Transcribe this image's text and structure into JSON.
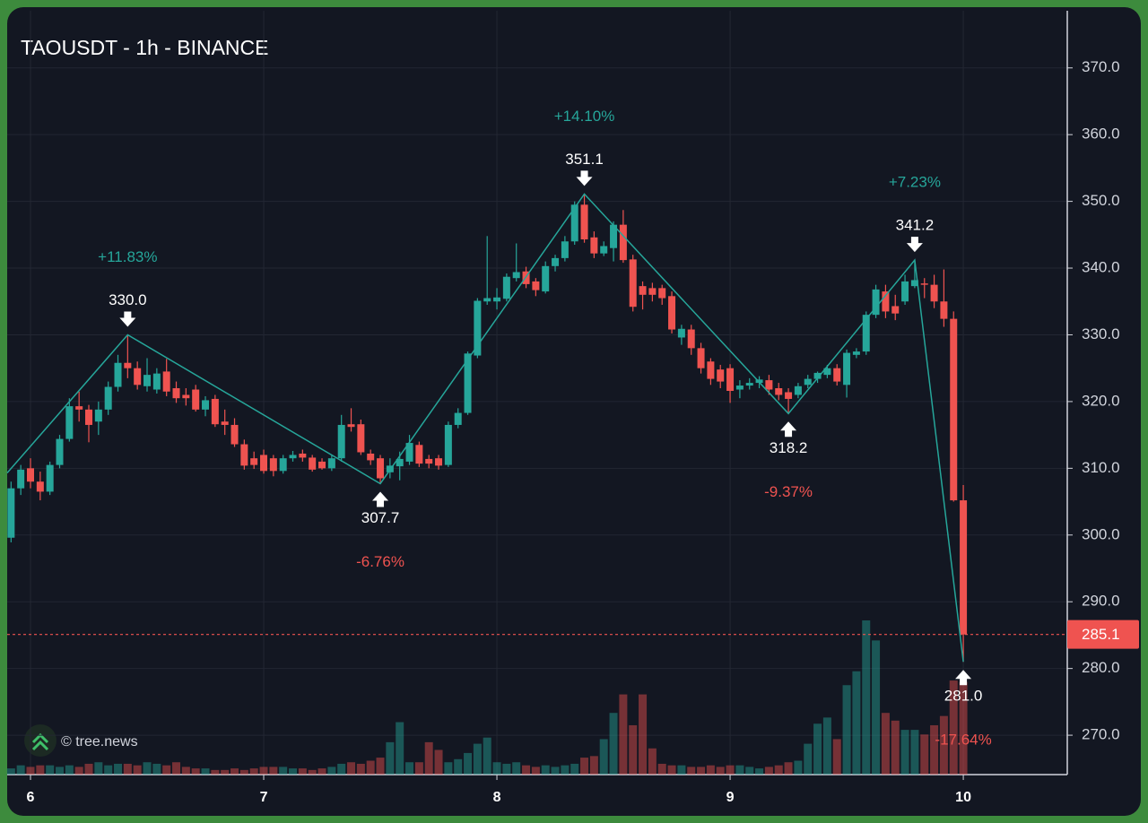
{
  "chart_data": {
    "type": "candlestick",
    "title": "TAOUSDT - 1h - BINANCE",
    "watermark": "© tree.news",
    "up_color": "#26a69a",
    "down_color": "#ef5350",
    "grid": true,
    "xlim": [
      -2.4,
      106.7
    ],
    "xticks": [
      {
        "value": 0,
        "label": "6"
      },
      {
        "value": 24,
        "label": "7"
      },
      {
        "value": 48,
        "label": "8"
      },
      {
        "value": 72,
        "label": "9"
      },
      {
        "value": 96,
        "label": "10"
      }
    ],
    "ylim": [
      264.1,
      379.1
    ],
    "yticks": [
      {
        "value": 270,
        "label": "270.0"
      },
      {
        "value": 280,
        "label": "280.0"
      },
      {
        "value": 290,
        "label": "290.0"
      },
      {
        "value": 300,
        "label": "300.0"
      },
      {
        "value": 310,
        "label": "310.0"
      },
      {
        "value": 320,
        "label": "320.0"
      },
      {
        "value": 330,
        "label": "330.0"
      },
      {
        "value": 340,
        "label": "340.0"
      },
      {
        "value": 350,
        "label": "350.0"
      },
      {
        "value": 360,
        "label": "360.0"
      },
      {
        "value": 370,
        "label": "370.0"
      }
    ],
    "volume_ylim": [
      0,
      100
    ],
    "x": [
      -2,
      -1,
      0,
      1,
      2,
      3,
      4,
      5,
      6,
      7,
      8,
      9,
      10,
      11,
      12,
      13,
      14,
      15,
      16,
      17,
      18,
      19,
      20,
      21,
      22,
      23,
      24,
      25,
      26,
      27,
      28,
      29,
      30,
      31,
      32,
      33,
      34,
      35,
      36,
      37,
      38,
      39,
      40,
      41,
      42,
      43,
      44,
      45,
      46,
      47,
      48,
      49,
      50,
      51,
      52,
      53,
      54,
      55,
      56,
      57,
      58,
      59,
      60,
      61,
      62,
      63,
      64,
      65,
      66,
      67,
      68,
      69,
      70,
      71,
      72,
      73,
      74,
      75,
      76,
      77,
      78,
      79,
      80,
      81,
      82,
      83,
      84,
      85,
      86,
      87,
      88,
      89,
      90,
      91,
      92,
      93,
      94,
      95,
      96
    ],
    "open": [
      299.6,
      307.0,
      310.0,
      308.0,
      306.5,
      310.5,
      314.4,
      319.3,
      318.8,
      317.0,
      318.8,
      322.2,
      325.8,
      325.0,
      322.3,
      321.8,
      324.5,
      322.0,
      321.0,
      321.8,
      318.8,
      320.4,
      317.0,
      316.5,
      313.6,
      311.5,
      312.0,
      311.5,
      309.6,
      311.5,
      312.2,
      311.6,
      311.0,
      310.0,
      311.5,
      316.6,
      316.6,
      312.2,
      311.5,
      309.4,
      310.3,
      311.0,
      313.5,
      311.4,
      311.5,
      310.5,
      316.5,
      318.3,
      326.9,
      335.0,
      335.0,
      335.4,
      338.5,
      339.5,
      338.0,
      336.5,
      340.3,
      341.5,
      344.0,
      349.5,
      344.6,
      342.2,
      343.0,
      346.5,
      341.3,
      337.3,
      337.0,
      337.0,
      335.8,
      329.6,
      330.8,
      328.0,
      326.0,
      324.8,
      325.0,
      321.8,
      322.4,
      322.8,
      323.2,
      322.0,
      321.4,
      321.0,
      322.5,
      323.4,
      324.0,
      325.0,
      322.5,
      327.0,
      327.5,
      333.0,
      336.5,
      334.3,
      335.0,
      337.3,
      337.7,
      337.5,
      335.0,
      332.4,
      305.2
    ],
    "high": [
      308,
      310.5,
      311.5,
      309.5,
      311,
      315,
      320.5,
      321.5,
      319.5,
      320,
      323,
      327,
      330.0,
      326,
      326.5,
      325,
      326.4,
      323,
      322,
      322.5,
      320.8,
      321,
      318.8,
      317.5,
      314.3,
      312.5,
      312.8,
      312,
      312,
      312.6,
      312.8,
      312,
      311.5,
      312,
      318,
      319,
      317.3,
      312.8,
      312,
      311.5,
      312.5,
      315,
      314,
      312,
      312,
      317,
      319,
      327.5,
      335.5,
      344.8,
      337,
      339.2,
      343.7,
      340.2,
      338.5,
      341,
      342,
      344.8,
      350,
      351.1,
      345.5,
      344,
      347,
      348.7,
      342,
      338,
      337.8,
      337.5,
      336.5,
      331.5,
      331.5,
      328.8,
      326.5,
      325.5,
      325.6,
      323.2,
      323.5,
      323.8,
      324,
      322.8,
      322,
      322.8,
      324,
      324.5,
      325.5,
      325.6,
      327.8,
      328,
      333.5,
      337.5,
      337.5,
      336,
      339,
      341.2,
      338.5,
      339,
      339.8,
      333.5,
      307.5
    ],
    "low": [
      298.9,
      306,
      307,
      305.2,
      306,
      310,
      314,
      317,
      313.9,
      315,
      318,
      321.5,
      323.5,
      321.8,
      321.5,
      321.2,
      320.8,
      319.8,
      319.4,
      318.5,
      317.8,
      316.2,
      315,
      313.2,
      309.8,
      309.9,
      309.2,
      308.8,
      309.2,
      311,
      311,
      309.5,
      309.8,
      309.6,
      311,
      315.5,
      312,
      310.5,
      307.7,
      308.5,
      308.2,
      310.5,
      310.2,
      310,
      309.8,
      310.2,
      316,
      318,
      326.5,
      334.5,
      333.8,
      335,
      338,
      337,
      335.8,
      336.2,
      339.5,
      341,
      343.5,
      343.8,
      341.5,
      341.8,
      341,
      340.8,
      333.5,
      333.8,
      335,
      334.5,
      330.2,
      328.5,
      327,
      324.2,
      322.5,
      322,
      319.8,
      320.5,
      321.8,
      322,
      321,
      320.2,
      318.2,
      320.5,
      322,
      322.8,
      323.5,
      322.4,
      320.6,
      326.5,
      327,
      332.5,
      332.5,
      332.2,
      334.5,
      337,
      335.5,
      334,
      331.2,
      305,
      281.0
    ],
    "close": [
      307.0,
      309.8,
      308.0,
      306.5,
      310.5,
      314.4,
      319.3,
      318.8,
      316.5,
      318.8,
      322.2,
      325.8,
      325.0,
      322.5,
      324.0,
      324.2,
      321.5,
      320.5,
      320.5,
      318.8,
      320.2,
      316.6,
      316.5,
      313.6,
      310.4,
      310.5,
      309.6,
      309.6,
      311.5,
      312.0,
      311.6,
      309.8,
      310.0,
      311.5,
      316.5,
      316.2,
      312.4,
      311.2,
      308.5,
      310.4,
      311.4,
      313.8,
      310.7,
      310.7,
      310.4,
      316.5,
      318.3,
      327.2,
      335.1,
      335.5,
      335.6,
      338.7,
      339.4,
      337.6,
      336.7,
      340.3,
      341.5,
      344.0,
      349.5,
      344.3,
      342.2,
      343.3,
      346.5,
      341.2,
      334.2,
      336.0,
      336.0,
      335.5,
      330.8,
      330.9,
      328.0,
      325.0,
      323.4,
      323.0,
      321.6,
      322.4,
      322.8,
      323.3,
      321.8,
      321.0,
      320.4,
      322.3,
      323.4,
      324.3,
      325.0,
      323.0,
      327.3,
      327.5,
      333.0,
      336.8,
      333.5,
      333.2,
      338.0,
      338.2,
      337.5,
      335.0,
      332.4,
      305.2,
      285.1
    ],
    "volume": [
      4,
      6,
      5,
      6,
      6,
      5,
      6,
      5,
      7,
      8,
      6,
      7,
      7,
      6,
      8,
      7,
      6,
      8,
      5,
      4,
      4,
      3,
      3,
      4,
      3,
      4,
      5,
      5,
      5,
      4,
      4,
      3,
      4,
      5,
      7,
      8,
      7,
      9,
      11,
      21,
      34,
      8,
      8,
      21,
      16,
      8,
      10,
      14,
      20,
      24,
      8,
      7,
      8,
      6,
      5,
      6,
      5,
      6,
      7,
      11,
      12,
      23,
      40,
      52,
      32,
      52,
      17,
      7,
      6,
      6,
      5,
      5,
      6,
      5,
      6,
      6,
      5,
      4,
      5,
      6,
      8,
      9,
      20,
      33,
      37,
      23,
      58,
      67,
      100,
      87,
      40,
      35,
      29,
      29,
      26,
      32,
      38,
      61,
      60
    ],
    "zigzag": {
      "color": "#26a69a",
      "x": [
        -2.4,
        10,
        36,
        57,
        78,
        91,
        96
      ],
      "values": [
        309.3,
        330.0,
        307.7,
        351.1,
        318.2,
        341.2,
        281.0
      ],
      "value_labels": [
        null,
        "330.0",
        "307.7",
        "351.1",
        "318.2",
        "341.2",
        "281.0"
      ]
    },
    "changes": {
      "values": [
        11.83,
        -6.76,
        14.1,
        -9.37,
        7.23,
        -17.64
      ],
      "value_labels": [
        "+11.83%",
        "-6.76%",
        "+14.10%",
        "-9.37%",
        "+7.23%",
        "-17.64%"
      ]
    }
  }
}
